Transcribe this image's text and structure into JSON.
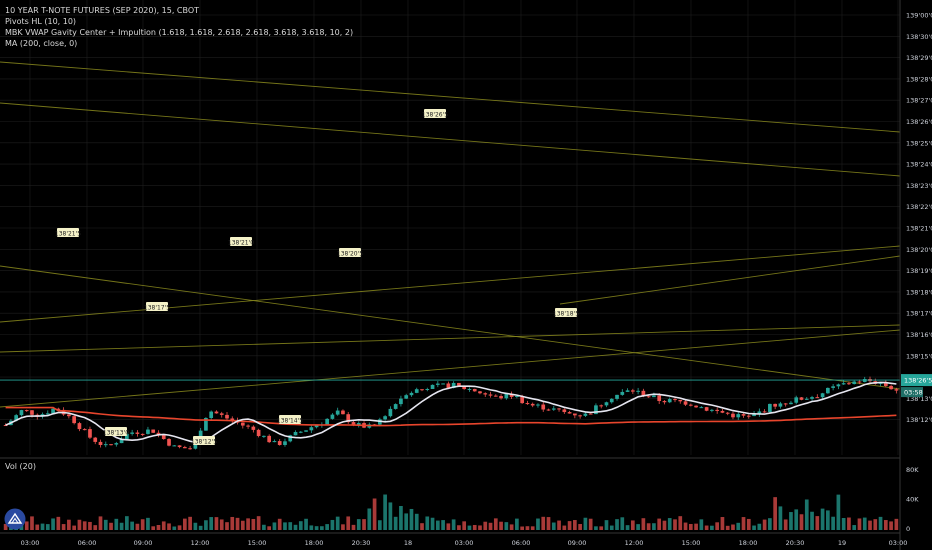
{
  "header": {
    "symbol_line": "10 YEAR T-NOTE FUTURES (SEP 2020), 15, CBOT",
    "indicators": [
      "Pivots HL (10, 10)",
      "MBK VWAP Gavity Center + Impultion (1.618, 1.618, 2.618, 2.618, 3.618, 3.618, 10, 2)",
      "MA (200, close, 0)"
    ],
    "volume_label": "Vol (20)"
  },
  "colors": {
    "up": "#26a69a",
    "down": "#ef5350",
    "vwap": "#e6e6f0",
    "ma": "#e8452c",
    "trend": "#8a8a1e",
    "price_line": "#26a69a",
    "background": "#000000",
    "grid": "#1e1e1e",
    "pivot_label_bg": "#f5f2c8"
  },
  "current_price": {
    "label": "138'26'5",
    "countdown": "03:58",
    "value": 138.265
  },
  "chart_data": {
    "type": "candlestick",
    "price_axis": {
      "ticks": [
        "139'00'0",
        "138'30'0",
        "138'29'0",
        "138'28'0",
        "138'27'0",
        "138'26'0",
        "138'25'0",
        "138'24'0",
        "138'23'0",
        "138'22'0",
        "138'21'0",
        "138'20'0",
        "138'19'0",
        "138'18'0",
        "138'17'0",
        "138'16'0",
        "138'15'0",
        "138'14'0",
        "138'13'0",
        "138'12'0"
      ],
      "range": [
        138.115,
        139.02
      ]
    },
    "volume_axis": {
      "ticks": [
        "80K",
        "40K",
        "0"
      ]
    },
    "time_axis": {
      "ticks": [
        "03:00",
        "06:00",
        "09:00",
        "12:00",
        "15:00",
        "18:00",
        "20:30",
        "18",
        "03:00",
        "06:00",
        "09:00",
        "12:00",
        "15:00",
        "18:00",
        "20:30",
        "19",
        "03:00"
      ]
    },
    "pivot_labels": [
      "138'21'5",
      "138'17'5",
      "138'21'0",
      "138'20'5",
      "138'26'5",
      "138'13'0",
      "138'12'5",
      "138'14'5",
      "138'18'5"
    ],
    "bars": 170,
    "y_values_estimated": true
  }
}
